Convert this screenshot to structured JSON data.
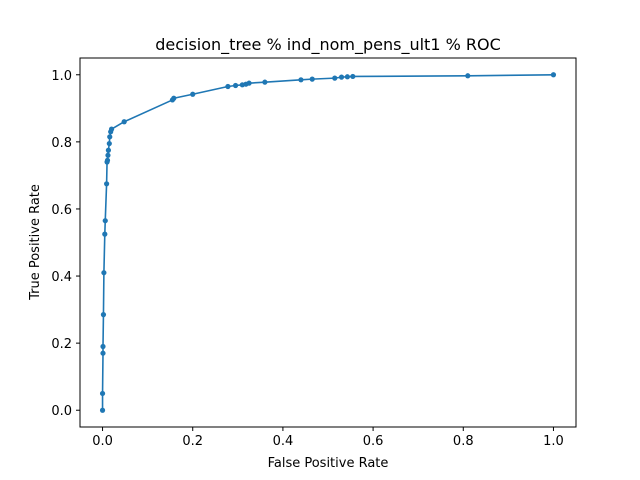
{
  "chart_data": {
    "type": "line",
    "title": "decision_tree % ind_nom_pens_ult1 % ROC",
    "xlabel": "False Positive Rate",
    "ylabel": "True Positive Rate",
    "xlim": [
      -0.05,
      1.05
    ],
    "ylim": [
      -0.05,
      1.05
    ],
    "grid": false,
    "xticks": [
      0.0,
      0.2,
      0.4,
      0.6,
      0.8,
      1.0
    ],
    "yticks": [
      0.0,
      0.2,
      0.4,
      0.6,
      0.8,
      1.0
    ],
    "tick_labels": [
      "0.0",
      "0.2",
      "0.4",
      "0.6",
      "0.8",
      "1.0"
    ],
    "color": "#1f77b4",
    "series": [
      {
        "x": [
          0.0,
          0.0,
          0.001,
          0.001,
          0.002,
          0.003,
          0.005,
          0.006,
          0.009,
          0.01,
          0.011,
          0.012,
          0.013,
          0.015,
          0.016,
          0.018,
          0.02,
          0.048,
          0.155,
          0.158,
          0.2,
          0.278,
          0.295,
          0.31,
          0.318,
          0.325,
          0.36,
          0.44,
          0.465,
          0.515,
          0.53,
          0.543,
          0.555,
          0.81,
          1.0
        ],
        "y": [
          0.0,
          0.05,
          0.17,
          0.19,
          0.285,
          0.41,
          0.525,
          0.565,
          0.675,
          0.74,
          0.745,
          0.76,
          0.775,
          0.795,
          0.815,
          0.83,
          0.838,
          0.86,
          0.925,
          0.93,
          0.942,
          0.965,
          0.968,
          0.97,
          0.972,
          0.975,
          0.978,
          0.985,
          0.987,
          0.99,
          0.993,
          0.994,
          0.995,
          0.997,
          1.0
        ]
      }
    ]
  }
}
